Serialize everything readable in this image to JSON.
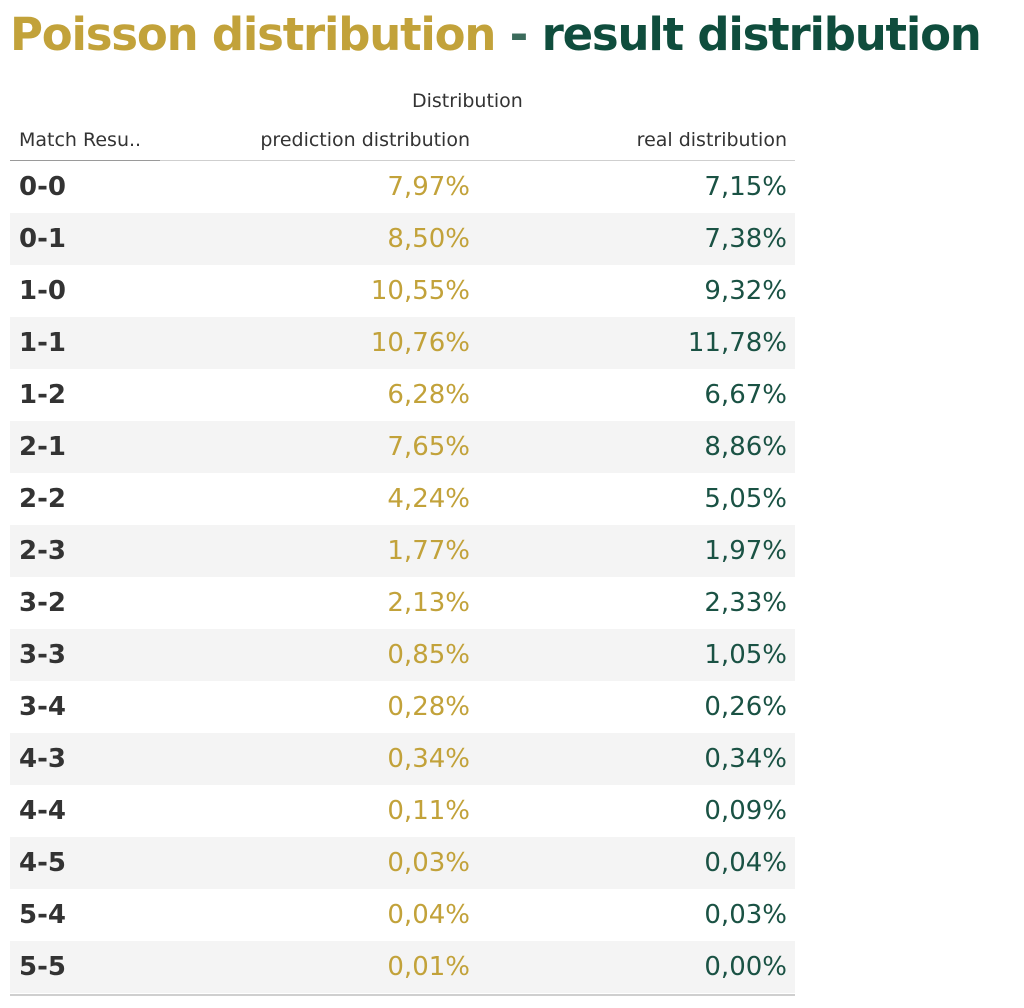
{
  "title": {
    "part_a": "Poisson distribution",
    "separator": "-",
    "part_b": "result distribution"
  },
  "colors": {
    "prediction": "#c2a23a",
    "real": "#1a5244",
    "title_b": "#0f4d3d"
  },
  "chart_data": {
    "type": "table",
    "column_group": "Distribution",
    "columns": [
      "Match Resu..",
      "prediction distribution",
      "real distribution"
    ],
    "rows": [
      {
        "result": "0-0",
        "prediction": "7,97%",
        "real": "7,15%"
      },
      {
        "result": "0-1",
        "prediction": "8,50%",
        "real": "7,38%"
      },
      {
        "result": "1-0",
        "prediction": "10,55%",
        "real": "9,32%"
      },
      {
        "result": "1-1",
        "prediction": "10,76%",
        "real": "11,78%"
      },
      {
        "result": "1-2",
        "prediction": "6,28%",
        "real": "6,67%"
      },
      {
        "result": "2-1",
        "prediction": "7,65%",
        "real": "8,86%"
      },
      {
        "result": "2-2",
        "prediction": "4,24%",
        "real": "5,05%"
      },
      {
        "result": "2-3",
        "prediction": "1,77%",
        "real": "1,97%"
      },
      {
        "result": "3-2",
        "prediction": "2,13%",
        "real": "2,33%"
      },
      {
        "result": "3-3",
        "prediction": "0,85%",
        "real": "1,05%"
      },
      {
        "result": "3-4",
        "prediction": "0,28%",
        "real": "0,26%"
      },
      {
        "result": "4-3",
        "prediction": "0,34%",
        "real": "0,34%"
      },
      {
        "result": "4-4",
        "prediction": "0,11%",
        "real": "0,09%"
      },
      {
        "result": "4-5",
        "prediction": "0,03%",
        "real": "0,04%"
      },
      {
        "result": "5-4",
        "prediction": "0,04%",
        "real": "0,03%"
      },
      {
        "result": "5-5",
        "prediction": "0,01%",
        "real": "0,00%"
      }
    ]
  }
}
